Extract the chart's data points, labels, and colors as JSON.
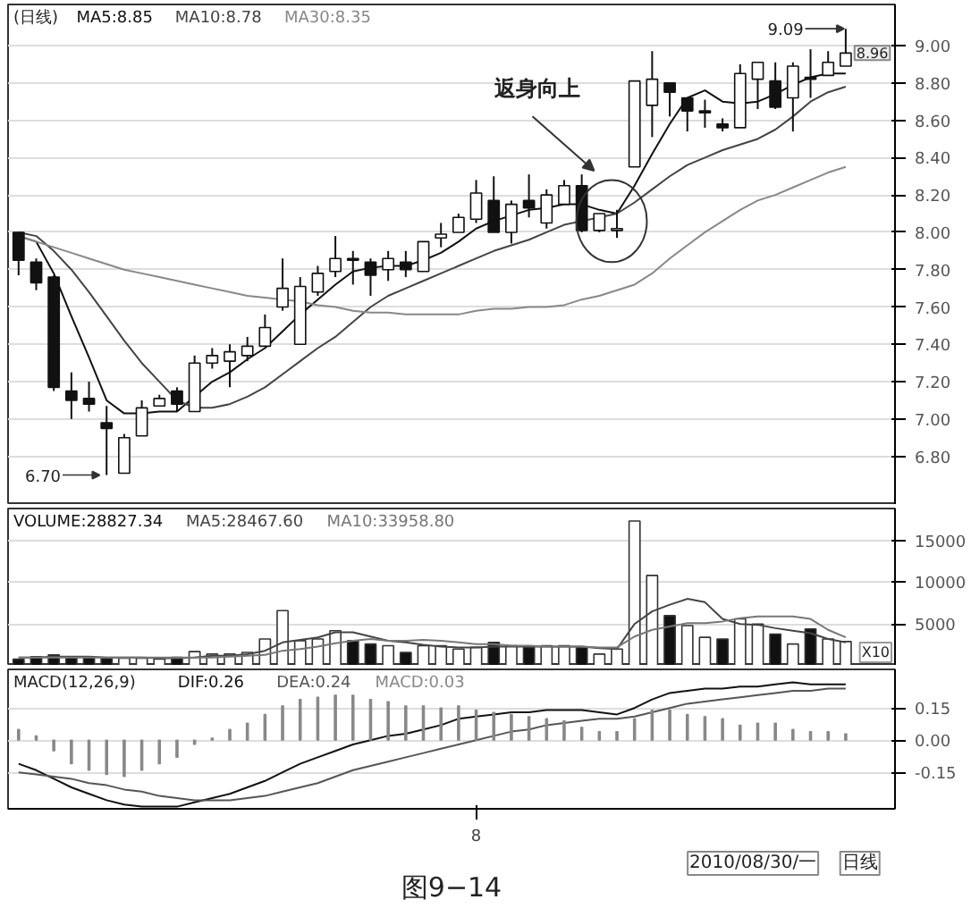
{
  "chart_data": [
    {
      "type": "candlestick",
      "title": "(日线)",
      "legend": "top left",
      "grid": "y",
      "categories": [
        null,
        null,
        null,
        null,
        null,
        null,
        null,
        null,
        null,
        null,
        null,
        null,
        null,
        null,
        null,
        null,
        null,
        null,
        null,
        null,
        null,
        null,
        null,
        null,
        null,
        null,
        null,
        null,
        null,
        null,
        null,
        null,
        null,
        null,
        null,
        null,
        null,
        null,
        null,
        null,
        null,
        null,
        null,
        null,
        null,
        null,
        null,
        null
      ],
      "ohlc": [
        [
          8.0,
          8.0,
          7.77,
          7.85
        ],
        [
          7.84,
          7.86,
          7.69,
          7.73
        ],
        [
          7.76,
          7.77,
          7.15,
          7.17
        ],
        [
          7.15,
          7.25,
          7.0,
          7.1
        ],
        [
          7.11,
          7.2,
          7.04,
          7.08
        ],
        [
          6.98,
          7.07,
          6.7,
          6.95
        ],
        [
          6.71,
          6.92,
          6.71,
          6.9
        ],
        [
          6.91,
          7.1,
          6.91,
          7.06
        ],
        [
          7.07,
          7.13,
          7.07,
          7.11
        ],
        [
          7.15,
          7.17,
          7.04,
          7.08
        ],
        [
          7.04,
          7.34,
          7.04,
          7.3
        ],
        [
          7.3,
          7.38,
          7.27,
          7.34
        ],
        [
          7.31,
          7.4,
          7.17,
          7.36
        ],
        [
          7.34,
          7.44,
          7.31,
          7.39
        ],
        [
          7.39,
          7.56,
          7.39,
          7.49
        ],
        [
          7.6,
          7.86,
          7.58,
          7.7
        ],
        [
          7.4,
          7.76,
          7.4,
          7.71
        ],
        [
          7.68,
          7.82,
          7.66,
          7.78
        ],
        [
          7.79,
          7.98,
          7.76,
          7.86
        ],
        [
          7.86,
          7.9,
          7.72,
          7.85
        ],
        [
          7.84,
          7.86,
          7.66,
          7.77
        ],
        [
          7.8,
          7.9,
          7.74,
          7.86
        ],
        [
          7.84,
          7.9,
          7.76,
          7.8
        ],
        [
          7.79,
          7.95,
          7.79,
          7.95
        ],
        [
          7.97,
          8.05,
          7.92,
          7.99
        ],
        [
          8.0,
          8.1,
          8.0,
          8.08
        ],
        [
          8.07,
          8.28,
          8.05,
          8.21
        ],
        [
          8.17,
          8.3,
          8.0,
          8.0
        ],
        [
          8.0,
          8.17,
          7.94,
          8.15
        ],
        [
          8.17,
          8.31,
          8.08,
          8.13
        ],
        [
          8.05,
          8.23,
          8.02,
          8.2
        ],
        [
          8.15,
          8.28,
          8.15,
          8.25
        ],
        [
          8.25,
          8.31,
          8.0,
          8.01
        ],
        [
          8.01,
          8.1,
          8.0,
          8.1
        ],
        [
          8.01,
          8.12,
          7.97,
          8.02
        ],
        [
          8.35,
          8.81,
          8.35,
          8.81
        ],
        [
          8.68,
          8.97,
          8.51,
          8.82
        ],
        [
          8.8,
          8.8,
          8.62,
          8.75
        ],
        [
          8.72,
          8.72,
          8.54,
          8.65
        ],
        [
          8.65,
          8.71,
          8.56,
          8.64
        ],
        [
          8.58,
          8.61,
          8.54,
          8.56
        ],
        [
          8.56,
          8.9,
          8.56,
          8.85
        ],
        [
          8.82,
          8.91,
          8.66,
          8.91
        ],
        [
          8.81,
          8.91,
          8.66,
          8.67
        ],
        [
          8.72,
          8.91,
          8.54,
          8.89
        ],
        [
          8.83,
          8.98,
          8.72,
          8.82
        ],
        [
          8.84,
          8.97,
          8.84,
          8.91
        ],
        [
          8.89,
          9.09,
          8.89,
          8.96
        ]
      ],
      "series": [
        {
          "name": "MA5:8.85",
          "type": "line",
          "color": "#111111",
          "values": [
            7.98,
            7.95,
            7.78,
            7.55,
            7.33,
            7.1,
            7.03,
            7.03,
            7.04,
            7.04,
            7.12,
            7.2,
            7.25,
            7.32,
            7.38,
            7.47,
            7.56,
            7.64,
            7.72,
            7.79,
            7.81,
            7.82,
            7.82,
            7.85,
            7.89,
            7.95,
            8.02,
            8.06,
            8.09,
            8.12,
            8.13,
            8.15,
            8.15,
            8.12,
            8.1,
            8.25,
            8.42,
            8.58,
            8.72,
            8.76,
            8.7,
            8.69,
            8.7,
            8.74,
            8.79,
            8.83,
            8.85,
            8.85
          ]
        },
        {
          "name": "MA10:8.78",
          "type": "line",
          "color": "#444444",
          "values": [
            8.0,
            7.98,
            7.9,
            7.8,
            7.68,
            7.55,
            7.42,
            7.3,
            7.2,
            7.1,
            7.06,
            7.06,
            7.08,
            7.12,
            7.17,
            7.24,
            7.31,
            7.38,
            7.44,
            7.52,
            7.6,
            7.66,
            7.7,
            7.74,
            7.78,
            7.82,
            7.86,
            7.9,
            7.93,
            7.96,
            8.0,
            8.04,
            8.06,
            8.08,
            8.1,
            8.16,
            8.23,
            8.3,
            8.36,
            8.4,
            8.44,
            8.47,
            8.5,
            8.55,
            8.62,
            8.7,
            8.75,
            8.78
          ]
        },
        {
          "name": "MA30:8.35",
          "type": "line",
          "color": "#888888",
          "values": [
            7.98,
            7.95,
            7.92,
            7.89,
            7.86,
            7.83,
            7.8,
            7.78,
            7.76,
            7.74,
            7.72,
            7.7,
            7.68,
            7.66,
            7.65,
            7.64,
            7.63,
            7.61,
            7.6,
            7.58,
            7.57,
            7.57,
            7.56,
            7.56,
            7.56,
            7.56,
            7.58,
            7.59,
            7.59,
            7.6,
            7.6,
            7.61,
            7.64,
            7.66,
            7.69,
            7.72,
            7.78,
            7.86,
            7.93,
            8.0,
            8.06,
            8.12,
            8.17,
            8.2,
            8.24,
            8.28,
            8.32,
            8.35
          ]
        }
      ],
      "ylim": [
        6.54,
        9.22
      ],
      "yticks": [
        {
          "value": 6.8,
          "label": "6.80"
        },
        {
          "value": 7.0,
          "label": "7.00"
        },
        {
          "value": 7.2,
          "label": "7.20"
        },
        {
          "value": 7.4,
          "label": "7.40"
        },
        {
          "value": 7.6,
          "label": "7.60"
        },
        {
          "value": 7.8,
          "label": "7.80"
        },
        {
          "value": 8.0,
          "label": "8.00"
        },
        {
          "value": 8.2,
          "label": "8.20"
        },
        {
          "value": 8.4,
          "label": "8.40"
        },
        {
          "value": 8.6,
          "label": "8.60"
        },
        {
          "value": 8.8,
          "label": "8.80"
        },
        {
          "value": 9.0,
          "label": "9.00"
        }
      ],
      "annotations": [
        "返身向上",
        "6.70",
        "9.09",
        "8.96"
      ]
    },
    {
      "type": "bar",
      "legend": "top left",
      "grid": "y",
      "ylabel": "X10",
      "categories": [
        null,
        null,
        null,
        null,
        null,
        null,
        null,
        null,
        null,
        null,
        null,
        null,
        null,
        null,
        null,
        null,
        null,
        null,
        null,
        null,
        null,
        null,
        null,
        null,
        null,
        null,
        null,
        null,
        null,
        null,
        null,
        null,
        null,
        null,
        null,
        null,
        null,
        null,
        null,
        null,
        null,
        null,
        null,
        null,
        null,
        null,
        null,
        null
      ],
      "series": [
        {
          "name": "VOLUME:28827.34",
          "type": "bar",
          "color": "#111111",
          "colors": [
            "#111111",
            "#111111",
            "#111111",
            "#111111",
            "#111111",
            "#111111",
            "#ffffff",
            "#ffffff",
            "#ffffff",
            "#111111",
            "#ffffff",
            "#ffffff",
            "#ffffff",
            "#ffffff",
            "#ffffff",
            "#ffffff",
            "#ffffff",
            "#ffffff",
            "#ffffff",
            "#111111",
            "#111111",
            "#ffffff",
            "#111111",
            "#ffffff",
            "#ffffff",
            "#ffffff",
            "#ffffff",
            "#111111",
            "#ffffff",
            "#111111",
            "#ffffff",
            "#ffffff",
            "#111111",
            "#ffffff",
            "#ffffff",
            "#ffffff",
            "#ffffff",
            "#111111",
            "#ffffff",
            "#ffffff",
            "#111111",
            "#ffffff",
            "#ffffff",
            "#111111",
            "#ffffff",
            "#111111",
            "#ffffff",
            "#ffffff"
          ],
          "values": [
            800,
            1100,
            1300,
            1000,
            1000,
            900,
            900,
            900,
            800,
            1000,
            1700,
            1400,
            1400,
            1600,
            3200,
            6600,
            3000,
            3200,
            4200,
            3000,
            2600,
            2400,
            1600,
            2400,
            2400,
            2000,
            2200,
            2800,
            2400,
            2200,
            2400,
            2400,
            2200,
            1400,
            2000,
            17300,
            10800,
            6000,
            4800,
            3400,
            3200,
            5600,
            5000,
            3800,
            2600,
            4400,
            3200,
            2900
          ]
        },
        {
          "name": "MA5:28467.60",
          "type": "line",
          "color": "#444444",
          "values": [
            1000,
            1000,
            1100,
            1100,
            1100,
            1000,
            1000,
            1000,
            900,
            900,
            1000,
            1200,
            1200,
            1400,
            1800,
            2800,
            3100,
            3400,
            4000,
            4000,
            3500,
            3000,
            2800,
            2500,
            2300,
            2200,
            2200,
            2300,
            2300,
            2300,
            2300,
            2300,
            2300,
            2100,
            2000,
            5000,
            6500,
            7300,
            8000,
            7600,
            5600,
            5000,
            4900,
            4500,
            4200,
            3900,
            3200,
            2800
          ]
        },
        {
          "name": "MA10:33958.80",
          "type": "line",
          "color": "#777777",
          "values": [
            1000,
            1000,
            1000,
            1000,
            1000,
            1000,
            1000,
            1000,
            1000,
            1000,
            1000,
            1000,
            1100,
            1200,
            1300,
            1800,
            2000,
            2300,
            2700,
            3000,
            3200,
            3000,
            3000,
            3100,
            3000,
            2800,
            2600,
            2600,
            2400,
            2400,
            2300,
            2300,
            2300,
            2200,
            2200,
            3500,
            4300,
            4700,
            5100,
            5100,
            5300,
            5700,
            5900,
            5900,
            5900,
            5600,
            4300,
            3400
          ]
        }
      ],
      "ylim": [
        0,
        18800
      ],
      "yticks": [
        5000,
        10000,
        15000
      ]
    },
    {
      "type": "bar",
      "title": "MACD(12,26,9)",
      "legend": "top left",
      "grid": "y",
      "categories": [
        null,
        null,
        null,
        null,
        null,
        null,
        null,
        null,
        null,
        null,
        null,
        null,
        null,
        null,
        null,
        null,
        null,
        null,
        null,
        null,
        null,
        null,
        null,
        null,
        null,
        null,
        "8",
        null,
        null,
        null,
        null,
        null,
        null,
        null,
        null,
        null,
        null,
        null,
        null,
        null,
        null,
        null,
        null,
        null,
        null,
        null,
        null,
        null
      ],
      "series": [
        {
          "name": "DIF:0.26",
          "type": "line",
          "color": "#111111",
          "values": [
            -0.11,
            -0.14,
            -0.18,
            -0.22,
            -0.25,
            -0.28,
            -0.3,
            -0.31,
            -0.31,
            -0.31,
            -0.29,
            -0.27,
            -0.25,
            -0.22,
            -0.19,
            -0.15,
            -0.11,
            -0.08,
            -0.05,
            -0.02,
            0.0,
            0.02,
            0.03,
            0.05,
            0.07,
            0.1,
            0.11,
            0.12,
            0.13,
            0.13,
            0.14,
            0.14,
            0.14,
            0.13,
            0.12,
            0.15,
            0.19,
            0.22,
            0.23,
            0.24,
            0.24,
            0.25,
            0.25,
            0.26,
            0.27,
            0.26,
            0.26,
            0.26
          ]
        },
        {
          "name": "DEA:0.24",
          "type": "line",
          "color": "#555555",
          "values": [
            -0.15,
            -0.16,
            -0.17,
            -0.18,
            -0.2,
            -0.21,
            -0.23,
            -0.24,
            -0.26,
            -0.27,
            -0.28,
            -0.28,
            -0.28,
            -0.27,
            -0.26,
            -0.24,
            -0.22,
            -0.2,
            -0.17,
            -0.14,
            -0.12,
            -0.1,
            -0.08,
            -0.06,
            -0.04,
            -0.02,
            0.0,
            0.02,
            0.04,
            0.05,
            0.07,
            0.08,
            0.09,
            0.1,
            0.1,
            0.11,
            0.13,
            0.15,
            0.17,
            0.18,
            0.19,
            0.2,
            0.21,
            0.22,
            0.23,
            0.23,
            0.24,
            0.24
          ]
        },
        {
          "name": "MACD:0.03",
          "type": "bar",
          "color": "#888888",
          "values": [
            0.05,
            0.02,
            -0.05,
            -0.11,
            -0.14,
            -0.16,
            -0.17,
            -0.14,
            -0.11,
            -0.08,
            -0.02,
            0.01,
            0.05,
            0.08,
            0.12,
            0.16,
            0.19,
            0.2,
            0.21,
            0.21,
            0.19,
            0.18,
            0.16,
            0.16,
            0.15,
            0.16,
            0.14,
            0.13,
            0.12,
            0.11,
            0.1,
            0.09,
            0.06,
            0.04,
            0.04,
            0.1,
            0.14,
            0.14,
            0.12,
            0.11,
            0.1,
            0.07,
            0.08,
            0.08,
            0.05,
            0.04,
            0.04,
            0.03
          ]
        }
      ],
      "ylim": [
        -0.32,
        0.33
      ],
      "yticks": [
        {
          "value": -0.15,
          "label": "-0.15"
        },
        {
          "value": 0,
          "label": "0.00"
        },
        {
          "value": 0.15,
          "label": "0.15"
        }
      ],
      "annotations": [
        "2010/08/30/一",
        "日线",
        "图9−14"
      ]
    }
  ]
}
